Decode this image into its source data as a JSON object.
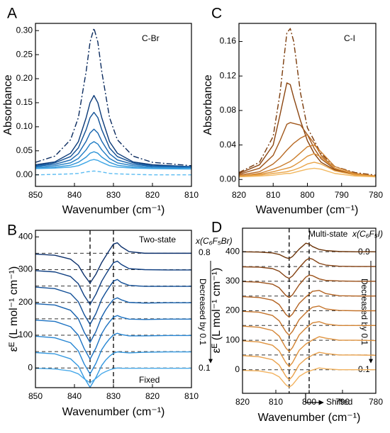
{
  "chart_data": [
    {
      "type": "line",
      "panel": "A",
      "annotation": "C-Br",
      "x_label": "Wavenumber (cm⁻¹)",
      "y_label": "Absorbance",
      "x": [
        850,
        845,
        841,
        839,
        837,
        836,
        835,
        834,
        833,
        831,
        829,
        825,
        820,
        810
      ],
      "xlim": [
        850,
        810
      ],
      "xticks": [
        850,
        840,
        830,
        820,
        810
      ],
      "ylim": [
        -0.024,
        0.315
      ],
      "yticks": [
        {
          "value": 0,
          "label": "0.00"
        },
        {
          "value": 0.05,
          "label": "0.05"
        },
        {
          "value": 0.1,
          "label": "0.10"
        },
        {
          "value": 0.15,
          "label": "0.15"
        },
        {
          "value": 0.2,
          "label": "0.20"
        },
        {
          "value": 0.25,
          "label": "0.25"
        },
        {
          "value": 0.3,
          "label": "0.30"
        }
      ],
      "series": [
        {
          "color": "#0a2a5e",
          "style": "dashdot",
          "values": [
            0.026,
            0.039,
            0.073,
            0.119,
            0.215,
            0.276,
            0.305,
            0.276,
            0.215,
            0.119,
            0.073,
            0.039,
            0.026,
            0.019
          ]
        },
        {
          "color": "#0b3a78",
          "style": "solid",
          "values": [
            0.021,
            0.027,
            0.045,
            0.069,
            0.119,
            0.15,
            0.165,
            0.15,
            0.119,
            0.069,
            0.045,
            0.027,
            0.021,
            0.017
          ]
        },
        {
          "color": "#0f4f94",
          "style": "solid",
          "values": [
            0.019,
            0.025,
            0.038,
            0.056,
            0.094,
            0.119,
            0.13,
            0.119,
            0.094,
            0.056,
            0.038,
            0.025,
            0.019,
            0.017
          ]
        },
        {
          "color": "#1664ad",
          "style": "solid",
          "values": [
            0.018,
            0.022,
            0.031,
            0.044,
            0.07,
            0.087,
            0.095,
            0.087,
            0.07,
            0.044,
            0.031,
            0.022,
            0.018,
            0.016
          ]
        },
        {
          "color": "#1f7cc4",
          "style": "solid",
          "values": [
            0.016,
            0.019,
            0.025,
            0.034,
            0.052,
            0.064,
            0.069,
            0.064,
            0.052,
            0.034,
            0.025,
            0.019,
            0.016,
            0.015
          ]
        },
        {
          "color": "#2a92d6",
          "style": "solid",
          "values": [
            0.014,
            0.016,
            0.02,
            0.026,
            0.037,
            0.045,
            0.048,
            0.045,
            0.037,
            0.026,
            0.02,
            0.016,
            0.014,
            0.013
          ]
        },
        {
          "color": "#3ea6e6",
          "style": "solid",
          "values": [
            0.013,
            0.014,
            0.016,
            0.019,
            0.026,
            0.03,
            0.032,
            0.03,
            0.026,
            0.019,
            0.016,
            0.014,
            0.013,
            0.012
          ]
        },
        {
          "color": "#5cbcf2",
          "style": "dashed",
          "values": [
            0,
            0.001,
            0.002,
            0.003,
            0.006,
            0.007,
            0.008,
            0.007,
            0.006,
            0.003,
            0.002,
            0.001,
            0,
            0
          ]
        }
      ]
    },
    {
      "type": "line",
      "panel": "C",
      "annotation": "C-I",
      "x_label": "Wavenumber (cm⁻¹)",
      "y_label": "Absorbance",
      "x": [
        820,
        814,
        810,
        808,
        806,
        805,
        804,
        802,
        800,
        798,
        796,
        792,
        786,
        780
      ],
      "xlim": [
        820,
        780
      ],
      "xticks": [
        820,
        810,
        800,
        790,
        780
      ],
      "ylim": [
        -0.008,
        0.181
      ],
      "yticks": [
        {
          "value": 0,
          "label": "0.00"
        },
        {
          "value": 0.04,
          "label": "0.04"
        },
        {
          "value": 0.08,
          "label": "0.08"
        },
        {
          "value": 0.12,
          "label": "0.12"
        },
        {
          "value": 0.16,
          "label": "0.16"
        }
      ],
      "series": [
        {
          "color": "#7a3a0a",
          "style": "dashdot",
          "values": [
            0.008,
            0.02,
            0.05,
            0.1,
            0.17,
            0.175,
            0.16,
            0.1,
            0.06,
            0.045,
            0.03,
            0.015,
            0.008,
            0.005
          ]
        },
        {
          "color": "#8b4510",
          "style": "solid",
          "values": [
            0.007,
            0.017,
            0.04,
            0.075,
            0.112,
            0.11,
            0.095,
            0.068,
            0.045,
            0.03,
            0.02,
            0.011,
            0.006,
            0.004
          ]
        },
        {
          "color": "#a0561a",
          "style": "solid",
          "values": [
            0.006,
            0.013,
            0.028,
            0.045,
            0.064,
            0.066,
            0.065,
            0.063,
            0.052,
            0.036,
            0.024,
            0.012,
            0.006,
            0.004
          ]
        },
        {
          "color": "#b86a24",
          "style": "solid",
          "values": [
            0.005,
            0.009,
            0.018,
            0.025,
            0.034,
            0.038,
            0.042,
            0.048,
            0.052,
            0.042,
            0.028,
            0.013,
            0.006,
            0.004
          ]
        },
        {
          "color": "#cc7f2e",
          "style": "solid",
          "values": [
            0.004,
            0.007,
            0.012,
            0.015,
            0.019,
            0.021,
            0.024,
            0.031,
            0.038,
            0.04,
            0.032,
            0.015,
            0.007,
            0.004
          ]
        },
        {
          "color": "#dd9238",
          "style": "solid",
          "values": [
            0.004,
            0.006,
            0.009,
            0.011,
            0.013,
            0.014,
            0.016,
            0.021,
            0.027,
            0.03,
            0.026,
            0.013,
            0.006,
            0.004
          ]
        },
        {
          "color": "#eaa548",
          "style": "solid",
          "values": [
            0.003,
            0.005,
            0.007,
            0.008,
            0.009,
            0.01,
            0.011,
            0.014,
            0.018,
            0.02,
            0.018,
            0.01,
            0.005,
            0.003
          ]
        },
        {
          "color": "#f2b860",
          "style": "solid",
          "values": [
            0.003,
            0.004,
            0.005,
            0.006,
            0.007,
            0.007,
            0.008,
            0.01,
            0.012,
            0.013,
            0.012,
            0.007,
            0.004,
            0.003
          ]
        }
      ]
    },
    {
      "type": "line",
      "panel": "B",
      "x_label": "Wavenumber (cm⁻¹)",
      "y_label": "εᴱ (L mol⁻¹ cm⁻¹)",
      "state": "Two-state",
      "composition": "x(C₆F₅Br)",
      "top_label": "0.8",
      "bottom_label": "0.1",
      "trend": "Decreased by 0.1",
      "shift": "Fixed",
      "x": [
        850,
        845,
        841,
        839,
        837.5,
        836,
        834.5,
        833,
        832,
        831,
        830,
        829,
        828,
        826,
        822,
        816,
        810
      ],
      "xlim": [
        850,
        810
      ],
      "xticks": [
        850,
        840,
        830,
        820,
        810
      ],
      "ylim": [
        -60,
        420
      ],
      "yticks": [
        0,
        100,
        200,
        300,
        400
      ],
      "hlines": [
        350,
        300,
        250,
        200,
        150,
        100,
        50,
        0
      ],
      "vlines": [
        836,
        830
      ],
      "series": [
        {
          "color": "#0b2f6b",
          "style": "solid",
          "values": [
            347.5,
            344,
            332,
            313,
            283,
            259,
            286,
            322,
            341,
            360,
            378,
            382,
            370,
            355,
            350,
            350,
            350
          ]
        },
        {
          "color": "#0d3d80",
          "style": "solid",
          "values": [
            297,
            293,
            279,
            257,
            221,
            194,
            225,
            265,
            285,
            304,
            321,
            326,
            316,
            303,
            300,
            299,
            299
          ]
        },
        {
          "color": "#114e96",
          "style": "solid",
          "values": [
            247,
            242,
            227,
            202,
            163,
            133,
            166,
            210,
            230,
            248,
            265,
            270,
            261,
            252,
            249,
            249,
            249
          ]
        },
        {
          "color": "#1660ad",
          "style": "solid",
          "values": [
            196,
            192,
            176,
            150,
            109,
            78,
            111,
            156,
            177,
            194,
            209,
            214,
            208,
            200,
            198,
            199,
            199
          ]
        },
        {
          "color": "#1c72c2",
          "style": "solid",
          "values": [
            146,
            142,
            126,
            100,
            59,
            27,
            61,
            105,
            125,
            141,
            155,
            160,
            155,
            149,
            148,
            149,
            149
          ]
        },
        {
          "color": "#2585d3",
          "style": "solid",
          "values": [
            97,
            92,
            77,
            52,
            12,
            -18,
            14,
            56,
            74,
            89,
            101,
            106,
            102,
            98,
            98,
            99,
            99
          ]
        },
        {
          "color": "#3398e0",
          "style": "solid",
          "values": [
            47,
            43,
            28,
            6,
            -30,
            -59,
            -29,
            8,
            24,
            36,
            45,
            49,
            48,
            46,
            48,
            49,
            49
          ]
        },
        {
          "color": "#4aaaea",
          "style": "solid",
          "values": [
            -1,
            -3,
            -9,
            -18,
            -33,
            -45,
            -32,
            -17,
            -11,
            -6,
            -2,
            0,
            -1,
            -1,
            -1,
            -1,
            -1
          ]
        }
      ]
    },
    {
      "type": "line",
      "panel": "D",
      "x_label": "Wavenumber (cm⁻¹)",
      "y_label": "εᴱ (L mol⁻¹ cm⁻¹)",
      "state": "Multi-state",
      "composition": "x(C₆F₅I)",
      "top_label": "0.9",
      "bottom_label": "0.1",
      "trend": "Decreased by 0.1",
      "shift": "Shifted",
      "x": [
        820,
        815,
        811,
        809,
        807,
        806,
        805,
        803,
        801,
        800,
        799,
        797,
        795,
        791,
        786,
        780
      ],
      "xlim": [
        820,
        780
      ],
      "xticks": [
        820,
        810,
        800,
        790,
        780
      ],
      "ylim": [
        -80,
        480
      ],
      "yticks": [
        0,
        100,
        200,
        300,
        400
      ],
      "hlines": [
        400,
        350,
        300,
        250,
        200,
        150,
        100,
        50,
        0
      ],
      "vlines": [
        806,
        800
      ],
      "series": [
        {
          "color": "#6b3308",
          "style": "solid",
          "values": [
            400,
            399,
            396,
            391,
            380,
            377,
            384,
            409,
            429,
            426,
            418,
            408,
            404,
            401,
            400,
            400
          ]
        },
        {
          "color": "#844112",
          "style": "solid",
          "values": [
            349,
            348,
            343,
            334,
            315,
            310,
            318,
            346,
            371,
            378,
            375,
            361,
            355,
            351,
            350,
            350
          ]
        },
        {
          "color": "#9c5119",
          "style": "solid",
          "values": [
            299,
            297,
            290,
            278,
            252,
            245,
            254,
            288,
            314,
            321,
            319,
            308,
            303,
            301,
            300,
            300
          ]
        },
        {
          "color": "#b36322",
          "style": "solid",
          "values": [
            248,
            245,
            236,
            221,
            188,
            178,
            189,
            225,
            247,
            256,
            266,
            269,
            258,
            251,
            250,
            250
          ]
        },
        {
          "color": "#c4742c",
          "style": "solid",
          "values": [
            198,
            195,
            184,
            166,
            129,
            117,
            130,
            170,
            193,
            203,
            212,
            216,
            206,
            201,
            200,
            200
          ]
        },
        {
          "color": "#d48535",
          "style": "solid",
          "values": [
            148,
            144,
            133,
            114,
            74,
            62,
            75,
            118,
            141,
            150,
            159,
            163,
            155,
            150,
            150,
            150
          ]
        },
        {
          "color": "#e09440",
          "style": "solid",
          "values": [
            98,
            94,
            83,
            64,
            24,
            11,
            24,
            66,
            87,
            94,
            101,
            112,
            107,
            100,
            100,
            99
          ]
        },
        {
          "color": "#eaa24d",
          "style": "solid",
          "values": [
            48,
            44,
            34,
            16,
            -22,
            -34,
            -22,
            17,
            37,
            43,
            50,
            59,
            55,
            50,
            50,
            49
          ]
        },
        {
          "color": "#f2b25e",
          "style": "solid",
          "values": [
            -2,
            -4,
            -12,
            -24,
            -51,
            -59,
            -51,
            -23,
            -9,
            -5,
            -1,
            6,
            3,
            0,
            0,
            0
          ]
        }
      ]
    }
  ]
}
